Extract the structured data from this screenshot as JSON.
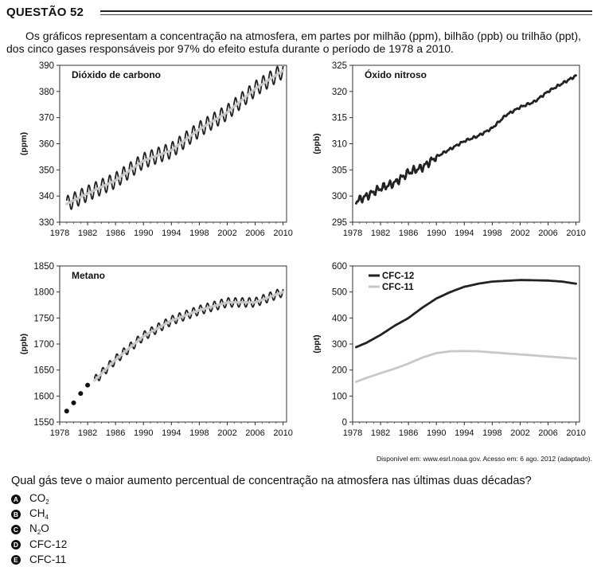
{
  "question": {
    "title": "QUESTÃO 52",
    "intro": "Os gráficos representam a concentração na atmosfera, em partes por milhão (ppm), bilhão (ppb) ou trilhão (ppt), dos cinco gases responsáveis por 97% do efeito estufa durante o período de 1978 a 2010.",
    "source": "Disponível em: www.esrl.noaa.gov. Acesso em: 6 ago. 2012 (adaptado).",
    "prompt": "Qual gás teve o maior aumento percentual de concentração na atmosfera nas últimas duas décadas?",
    "options": [
      {
        "letter": "A",
        "main": "CO",
        "sub": "2",
        "post": ""
      },
      {
        "letter": "B",
        "main": "CH",
        "sub": "4",
        "post": ""
      },
      {
        "letter": "C",
        "main": "N",
        "sub": "2",
        "post": "O"
      },
      {
        "letter": "D",
        "main": "CFC-12",
        "sub": "",
        "post": ""
      },
      {
        "letter": "E",
        "main": "CFC-11",
        "sub": "",
        "post": ""
      }
    ]
  },
  "colors": {
    "dark": "#222222",
    "light": "#c8c8c8"
  },
  "chart_data": [
    {
      "type": "line",
      "title": "Dióxido de carbono",
      "ylabel": "(ppm)",
      "xlim": [
        1978,
        2010.5
      ],
      "ylim": [
        330,
        390
      ],
      "yticks": [
        330,
        340,
        350,
        360,
        370,
        380,
        390
      ],
      "xticks": [
        1978,
        1982,
        1986,
        1990,
        1994,
        1998,
        2002,
        2006,
        2010
      ],
      "series": [
        {
          "kind": "seasonal",
          "color": "#222222",
          "amplitude": 3,
          "x": [
            1979,
            1982,
            1986,
            1990,
            1994,
            1998,
            2002,
            2006,
            2010
          ],
          "y": [
            337,
            341,
            346,
            353.5,
            357.5,
            365.5,
            372,
            381,
            388
          ]
        },
        {
          "kind": "trend",
          "color": "#c8c8c8",
          "x": [
            1979,
            1982,
            1986,
            1990,
            1994,
            1998,
            2002,
            2006,
            2010
          ],
          "y": [
            337,
            341,
            346,
            353.5,
            357.5,
            365.5,
            372,
            381,
            388
          ]
        }
      ]
    },
    {
      "type": "line",
      "title": "Óxido nitroso",
      "ylabel": "(ppb)",
      "xlim": [
        1978,
        2010.5
      ],
      "ylim": [
        295,
        325
      ],
      "yticks": [
        295,
        300,
        305,
        310,
        315,
        320,
        325
      ],
      "xticks": [
        1978,
        1982,
        1986,
        1990,
        1994,
        1998,
        2002,
        2006,
        2010
      ],
      "series": [
        {
          "kind": "noisy",
          "color": "#222222",
          "amplitude": 0.9,
          "x": [
            1978.5,
            1980,
            1982,
            1984,
            1986,
            1988,
            1990,
            1992,
            1994,
            1996,
            1998,
            2000,
            2002,
            2004,
            2006,
            2008,
            2010
          ],
          "y": [
            299,
            300,
            301.5,
            302.5,
            304.5,
            305.5,
            307.5,
            309,
            310.5,
            311.5,
            313,
            315.5,
            317,
            318,
            320,
            321.5,
            323
          ]
        }
      ]
    },
    {
      "type": "line",
      "title": "Metano",
      "ylabel": "(ppb)",
      "xlim": [
        1978,
        2010.5
      ],
      "ylim": [
        1550,
        1850
      ],
      "yticks": [
        1550,
        1600,
        1650,
        1700,
        1750,
        1800,
        1850
      ],
      "xticks": [
        1978,
        1982,
        1986,
        1990,
        1994,
        1998,
        2002,
        2006,
        2010
      ],
      "points": {
        "x": [
          1979,
          1980,
          1981,
          1982
        ],
        "y": [
          1571,
          1587,
          1605,
          1621
        ]
      },
      "series": [
        {
          "kind": "seasonal",
          "color": "#222222",
          "amplitude": 9,
          "x": [
            1983,
            1986,
            1990,
            1994,
            1998,
            2002,
            2006,
            2010
          ],
          "y": [
            1630,
            1670,
            1715,
            1745,
            1765,
            1780,
            1780,
            1800
          ]
        },
        {
          "kind": "trend",
          "color": "#c8c8c8",
          "x": [
            1983,
            1986,
            1990,
            1994,
            1998,
            2002,
            2006,
            2010
          ],
          "y": [
            1630,
            1670,
            1715,
            1745,
            1765,
            1780,
            1780,
            1800
          ]
        }
      ]
    },
    {
      "type": "line",
      "title": "",
      "ylabel": "(ppt)",
      "xlim": [
        1978,
        2010.5
      ],
      "ylim": [
        0,
        600
      ],
      "yticks": [
        0,
        100,
        200,
        300,
        400,
        500,
        600
      ],
      "xticks": [
        1978,
        1982,
        1986,
        1990,
        1994,
        1998,
        2002,
        2006,
        2010
      ],
      "legend": "top-left",
      "series": [
        {
          "name": "CFC-12",
          "kind": "plain",
          "color": "#222222",
          "x": [
            1978.5,
            1980,
            1982,
            1984,
            1986,
            1988,
            1990,
            1992,
            1994,
            1996,
            1998,
            2000,
            2002,
            2004,
            2006,
            2008,
            2010
          ],
          "y": [
            288,
            305,
            335,
            370,
            400,
            440,
            475,
            500,
            520,
            532,
            540,
            543,
            546,
            545,
            544,
            540,
            532
          ]
        },
        {
          "name": "CFC-11",
          "kind": "plain",
          "color": "#c8c8c8",
          "x": [
            1978.5,
            1980,
            1982,
            1984,
            1986,
            1988,
            1990,
            1992,
            1994,
            1996,
            1998,
            2000,
            2002,
            2004,
            2006,
            2008,
            2010
          ],
          "y": [
            155,
            170,
            188,
            205,
            225,
            248,
            265,
            272,
            273,
            272,
            268,
            264,
            260,
            256,
            252,
            248,
            244
          ]
        }
      ]
    }
  ]
}
